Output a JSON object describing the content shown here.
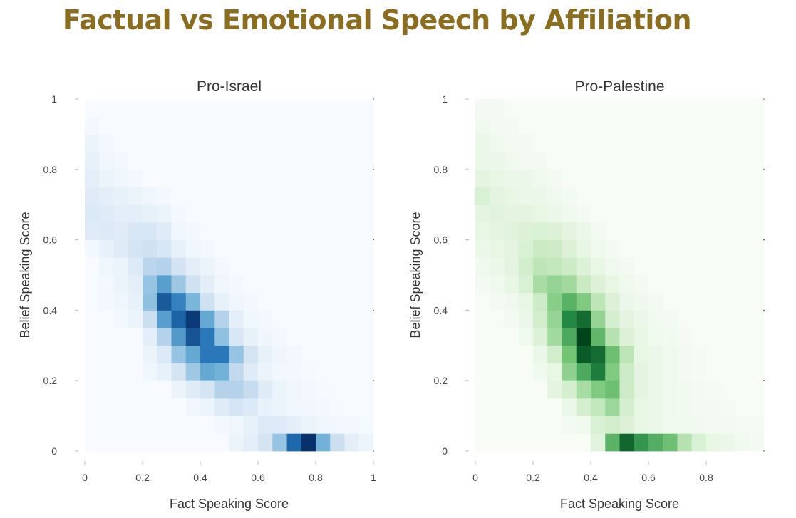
{
  "title": "Factual vs Emotional Speech by Affiliation",
  "title_color": "#8a6d1e",
  "chart_data": [
    {
      "type": "heatmap",
      "subplot_title": "Pro-Israel",
      "xlabel": "Fact Speaking Score",
      "ylabel": "Belief Speaking Score",
      "xlim": [
        0,
        1
      ],
      "ylim": [
        0,
        1
      ],
      "xticks": [
        "0",
        "0.2",
        "0.4",
        "0.6",
        "0.8",
        "1"
      ],
      "yticks": [
        "0",
        "0.2",
        "0.4",
        "0.6",
        "0.8",
        "1"
      ],
      "bin_width": 0.05,
      "colorscale": [
        "#f7fbff",
        "#c6dbef",
        "#6baed6",
        "#2171b5",
        "#08306b"
      ],
      "z": [
        [
          0,
          0,
          0,
          0,
          0,
          0,
          0,
          0,
          0,
          0,
          0.06,
          0.1,
          0.18,
          0.38,
          0.78,
          1.0,
          0.48,
          0.22,
          0.1,
          0.05
        ],
        [
          0,
          0,
          0,
          0,
          0,
          0,
          0,
          0,
          0,
          0.02,
          0.04,
          0.08,
          0.14,
          0.13,
          0.1,
          0.06,
          0.04,
          0.03,
          0.02,
          0.01
        ],
        [
          0,
          0,
          0,
          0,
          0,
          0,
          0,
          0.03,
          0.06,
          0.12,
          0.18,
          0.14,
          0.08,
          0.06,
          0.04,
          0.03,
          0.02,
          0.01,
          0,
          0
        ],
        [
          0,
          0,
          0,
          0,
          0,
          0,
          0.06,
          0.12,
          0.18,
          0.3,
          0.3,
          0.24,
          0.12,
          0.06,
          0.04,
          0.02,
          0.01,
          0,
          0,
          0
        ],
        [
          0,
          0,
          0,
          0,
          0.04,
          0.08,
          0.18,
          0.36,
          0.52,
          0.48,
          0.26,
          0.12,
          0.06,
          0.03,
          0.02,
          0.01,
          0,
          0,
          0,
          0
        ],
        [
          0,
          0,
          0,
          0,
          0.06,
          0.14,
          0.38,
          0.52,
          0.72,
          0.72,
          0.38,
          0.18,
          0.08,
          0.04,
          0.02,
          0,
          0,
          0,
          0,
          0
        ],
        [
          0,
          0,
          0,
          0,
          0.1,
          0.3,
          0.58,
          0.86,
          0.72,
          0.4,
          0.16,
          0.08,
          0.04,
          0.02,
          0,
          0,
          0,
          0,
          0,
          0
        ],
        [
          0,
          0,
          0.02,
          0.06,
          0.22,
          0.56,
          0.8,
          0.96,
          0.52,
          0.3,
          0.1,
          0.04,
          0.02,
          0,
          0,
          0,
          0,
          0,
          0,
          0
        ],
        [
          0,
          0.02,
          0.04,
          0.08,
          0.4,
          0.84,
          0.68,
          0.46,
          0.2,
          0.08,
          0.04,
          0.02,
          0,
          0,
          0,
          0,
          0,
          0,
          0,
          0
        ],
        [
          0,
          0.02,
          0.06,
          0.1,
          0.38,
          0.56,
          0.36,
          0.2,
          0.1,
          0.04,
          0.02,
          0,
          0,
          0,
          0,
          0,
          0,
          0,
          0,
          0
        ],
        [
          0,
          0.04,
          0.06,
          0.14,
          0.28,
          0.3,
          0.18,
          0.1,
          0.06,
          0.02,
          0,
          0,
          0,
          0,
          0,
          0,
          0,
          0,
          0,
          0
        ],
        [
          0.02,
          0.08,
          0.12,
          0.18,
          0.2,
          0.16,
          0.08,
          0.04,
          0.02,
          0,
          0,
          0,
          0,
          0,
          0,
          0,
          0,
          0,
          0,
          0
        ],
        [
          0.12,
          0.14,
          0.12,
          0.16,
          0.16,
          0.12,
          0.04,
          0.02,
          0,
          0,
          0,
          0,
          0,
          0,
          0,
          0,
          0,
          0,
          0,
          0
        ],
        [
          0.14,
          0.12,
          0.1,
          0.1,
          0.08,
          0.06,
          0.02,
          0,
          0,
          0,
          0,
          0,
          0,
          0,
          0,
          0,
          0,
          0,
          0,
          0
        ],
        [
          0.12,
          0.1,
          0.08,
          0.06,
          0.04,
          0.02,
          0,
          0,
          0,
          0,
          0,
          0,
          0,
          0,
          0,
          0,
          0,
          0,
          0,
          0
        ],
        [
          0.1,
          0.06,
          0.04,
          0.02,
          0,
          0,
          0,
          0,
          0,
          0,
          0,
          0,
          0,
          0,
          0,
          0,
          0,
          0,
          0,
          0
        ],
        [
          0.08,
          0.04,
          0.02,
          0,
          0,
          0,
          0,
          0,
          0,
          0,
          0,
          0,
          0,
          0,
          0,
          0,
          0,
          0,
          0,
          0
        ],
        [
          0.06,
          0.02,
          0,
          0,
          0,
          0,
          0,
          0,
          0,
          0,
          0,
          0,
          0,
          0,
          0,
          0,
          0,
          0,
          0,
          0
        ],
        [
          0.02,
          0,
          0,
          0,
          0,
          0,
          0,
          0,
          0,
          0,
          0,
          0,
          0,
          0,
          0,
          0,
          0,
          0,
          0,
          0
        ],
        [
          0,
          0,
          0,
          0,
          0,
          0,
          0,
          0,
          0,
          0,
          0,
          0,
          0,
          0,
          0,
          0,
          0,
          0,
          0,
          0
        ]
      ]
    },
    {
      "type": "heatmap",
      "subplot_title": "Pro-Palestine",
      "xlabel": "Fact Speaking Score",
      "ylabel": "Belief Speaking Score",
      "xlim": [
        0,
        1
      ],
      "ylim": [
        0,
        1
      ],
      "xticks": [
        "0",
        "0.2",
        "0.4",
        "0.6",
        "0.8"
      ],
      "yticks": [
        "0",
        "0.2",
        "0.4",
        "0.6",
        "0.8",
        "1"
      ],
      "bin_width": 0.05,
      "colorscale": [
        "#f7fcf5",
        "#c7e9c0",
        "#74c476",
        "#238b45",
        "#00441b"
      ],
      "z": [
        [
          0,
          0,
          0,
          0,
          0,
          0,
          0,
          0,
          0.12,
          0.58,
          0.88,
          0.7,
          0.6,
          0.52,
          0.3,
          0.16,
          0.08,
          0.06,
          0.03,
          0.02
        ],
        [
          0,
          0,
          0,
          0,
          0,
          0,
          0.02,
          0.04,
          0.16,
          0.2,
          0.14,
          0.08,
          0.06,
          0.04,
          0.04,
          0.03,
          0.02,
          0.02,
          0.01,
          0.01
        ],
        [
          0,
          0,
          0,
          0,
          0,
          0,
          0.06,
          0.18,
          0.26,
          0.38,
          0.18,
          0.08,
          0.06,
          0.04,
          0.03,
          0.02,
          0.02,
          0.01,
          0,
          0
        ],
        [
          0,
          0,
          0,
          0,
          0,
          0.1,
          0.18,
          0.34,
          0.46,
          0.52,
          0.22,
          0.1,
          0.06,
          0.04,
          0.03,
          0.02,
          0.01,
          0,
          0,
          0
        ],
        [
          0,
          0,
          0,
          0,
          0.04,
          0.08,
          0.42,
          0.62,
          0.8,
          0.46,
          0.22,
          0.1,
          0.06,
          0.04,
          0.02,
          0.01,
          0,
          0,
          0,
          0
        ],
        [
          0,
          0,
          0,
          0,
          0.06,
          0.2,
          0.5,
          0.92,
          0.86,
          0.52,
          0.28,
          0.08,
          0.06,
          0.04,
          0.02,
          0.01,
          0,
          0,
          0,
          0
        ],
        [
          0,
          0,
          0,
          0.04,
          0.14,
          0.36,
          0.62,
          1.0,
          0.56,
          0.3,
          0.14,
          0.08,
          0.04,
          0.03,
          0.01,
          0,
          0,
          0,
          0,
          0
        ],
        [
          0,
          0,
          0.02,
          0.06,
          0.2,
          0.4,
          0.76,
          0.86,
          0.4,
          0.18,
          0.1,
          0.06,
          0.03,
          0.02,
          0,
          0,
          0,
          0,
          0,
          0
        ],
        [
          0,
          0.02,
          0.04,
          0.08,
          0.22,
          0.44,
          0.58,
          0.46,
          0.28,
          0.14,
          0.06,
          0.04,
          0.02,
          0,
          0,
          0,
          0,
          0,
          0,
          0
        ],
        [
          0.02,
          0.04,
          0.08,
          0.16,
          0.34,
          0.4,
          0.36,
          0.24,
          0.14,
          0.08,
          0.04,
          0.02,
          0,
          0,
          0,
          0,
          0,
          0,
          0,
          0
        ],
        [
          0.04,
          0.06,
          0.1,
          0.2,
          0.28,
          0.26,
          0.22,
          0.14,
          0.08,
          0.04,
          0.02,
          0,
          0,
          0,
          0,
          0,
          0,
          0,
          0,
          0
        ],
        [
          0.06,
          0.08,
          0.1,
          0.16,
          0.24,
          0.22,
          0.14,
          0.08,
          0.04,
          0.02,
          0,
          0,
          0,
          0,
          0,
          0,
          0,
          0,
          0,
          0
        ],
        [
          0.08,
          0.1,
          0.12,
          0.14,
          0.16,
          0.14,
          0.1,
          0.06,
          0.02,
          0,
          0,
          0,
          0,
          0,
          0,
          0,
          0,
          0,
          0,
          0
        ],
        [
          0.1,
          0.12,
          0.1,
          0.1,
          0.08,
          0.06,
          0.04,
          0.02,
          0,
          0,
          0,
          0,
          0,
          0,
          0,
          0,
          0,
          0,
          0,
          0
        ],
        [
          0.16,
          0.1,
          0.08,
          0.06,
          0.06,
          0.04,
          0.02,
          0,
          0,
          0,
          0,
          0,
          0,
          0,
          0,
          0,
          0,
          0,
          0,
          0
        ],
        [
          0.1,
          0.08,
          0.06,
          0.06,
          0.04,
          0.02,
          0,
          0,
          0,
          0,
          0,
          0,
          0,
          0,
          0,
          0,
          0,
          0,
          0,
          0
        ],
        [
          0.06,
          0.06,
          0.04,
          0.02,
          0.02,
          0,
          0,
          0,
          0,
          0,
          0,
          0,
          0,
          0,
          0,
          0,
          0,
          0,
          0,
          0
        ],
        [
          0.06,
          0.04,
          0.02,
          0.02,
          0,
          0,
          0,
          0,
          0,
          0,
          0,
          0,
          0,
          0,
          0,
          0,
          0,
          0,
          0,
          0
        ],
        [
          0.04,
          0.02,
          0.02,
          0,
          0,
          0,
          0,
          0,
          0,
          0,
          0,
          0,
          0,
          0,
          0,
          0,
          0,
          0,
          0,
          0
        ],
        [
          0.02,
          0.02,
          0,
          0,
          0,
          0,
          0,
          0,
          0,
          0,
          0,
          0,
          0,
          0,
          0,
          0,
          0,
          0,
          0,
          0
        ]
      ]
    }
  ]
}
